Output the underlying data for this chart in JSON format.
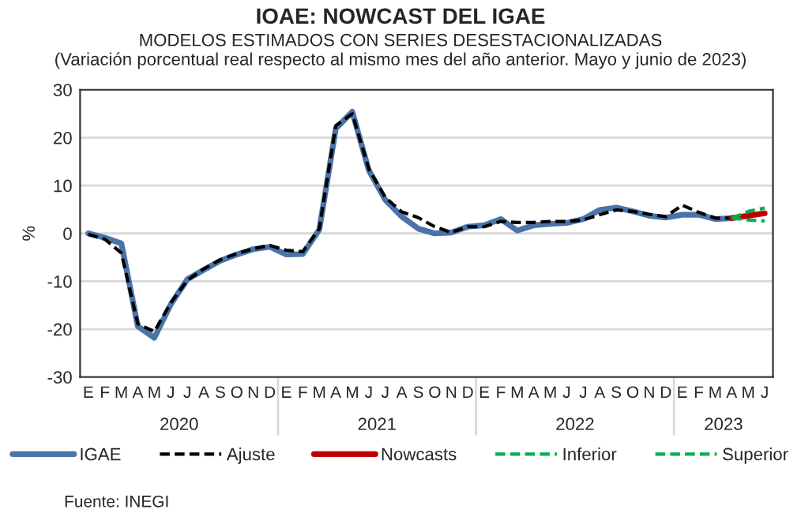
{
  "chart_data": {
    "type": "line",
    "title": "IOAE: NOWCAST DEL IGAE",
    "subtitle": "MODELOS ESTIMADOS CON SERIES DESESTACIONALIZADAS\n(Variación porcentual real respecto al mismo mes del año anterior. Mayo y junio de 2023)",
    "ylabel": "%",
    "categories": [
      "E",
      "F",
      "M",
      "A",
      "M",
      "J",
      "J",
      "A",
      "S",
      "O",
      "N",
      "D",
      "E",
      "F",
      "M",
      "A",
      "M",
      "J",
      "J",
      "A",
      "S",
      "O",
      "N",
      "D",
      "E",
      "F",
      "M",
      "A",
      "M",
      "J",
      "J",
      "A",
      "S",
      "O",
      "N",
      "D",
      "E",
      "F",
      "M",
      "A",
      "M",
      "J"
    ],
    "series": [
      {
        "name": "IGAE",
        "color": "#4a74a8",
        "line_style": "solid",
        "values": [
          0.0,
          -0.9,
          -2.1,
          -19.4,
          -21.8,
          -14.8,
          -9.6,
          -7.6,
          -5.7,
          -4.4,
          -3.3,
          -2.8,
          -4.4,
          -4.3,
          0.8,
          21.9,
          25.4,
          13.2,
          7.0,
          3.5,
          1.0,
          0.0,
          0.2,
          1.4,
          1.7,
          3.0,
          0.6,
          1.7,
          2.0,
          2.2,
          3.0,
          4.9,
          5.4,
          4.6,
          3.7,
          3.3,
          3.9,
          3.9,
          3.0,
          3.2,
          null,
          null
        ]
      },
      {
        "name": "Ajuste",
        "color": "#000000",
        "line_style": "dashed",
        "values": [
          -0.2,
          -1.2,
          -4.1,
          -18.9,
          -20.5,
          -14.5,
          -9.8,
          -7.4,
          -5.5,
          -4.2,
          -3.2,
          -2.5,
          -3.5,
          -3.8,
          1.0,
          22.5,
          25.0,
          13.5,
          7.5,
          4.5,
          3.3,
          1.4,
          0.2,
          1.4,
          1.4,
          2.5,
          2.3,
          2.3,
          2.5,
          2.5,
          2.8,
          3.9,
          4.9,
          4.6,
          4.0,
          3.5,
          5.9,
          4.4,
          3.2,
          3.2,
          null,
          null
        ]
      },
      {
        "name": "Nowcasts",
        "color": "#c00000",
        "line_style": "solid",
        "values": [
          null,
          null,
          null,
          null,
          null,
          null,
          null,
          null,
          null,
          null,
          null,
          null,
          null,
          null,
          null,
          null,
          null,
          null,
          null,
          null,
          null,
          null,
          null,
          null,
          null,
          null,
          null,
          null,
          null,
          null,
          null,
          null,
          null,
          null,
          null,
          null,
          null,
          null,
          null,
          3.2,
          3.7,
          4.2
        ]
      },
      {
        "name": "Inferior",
        "color": "#00b050",
        "line_style": "dashed",
        "values": [
          null,
          null,
          null,
          null,
          null,
          null,
          null,
          null,
          null,
          null,
          null,
          null,
          null,
          null,
          null,
          null,
          null,
          null,
          null,
          null,
          null,
          null,
          null,
          null,
          null,
          null,
          null,
          null,
          null,
          null,
          null,
          null,
          null,
          null,
          null,
          null,
          null,
          null,
          null,
          3.2,
          2.8,
          2.6
        ]
      },
      {
        "name": "Superior",
        "color": "#00b050",
        "line_style": "dashed",
        "values": [
          null,
          null,
          null,
          null,
          null,
          null,
          null,
          null,
          null,
          null,
          null,
          null,
          null,
          null,
          null,
          null,
          null,
          null,
          null,
          null,
          null,
          null,
          null,
          null,
          null,
          null,
          null,
          null,
          null,
          null,
          null,
          null,
          null,
          null,
          null,
          null,
          null,
          null,
          null,
          3.2,
          4.6,
          5.3
        ]
      }
    ],
    "ylim": [
      -30,
      30
    ],
    "yticks": [
      -30,
      -20,
      -10,
      0,
      10,
      20,
      30
    ],
    "grid": "y",
    "legend": "bottom",
    "marker": "none",
    "annotations": [
      "2020",
      "2021",
      "2022",
      "2023",
      "Fuente: INEGI"
    ]
  }
}
